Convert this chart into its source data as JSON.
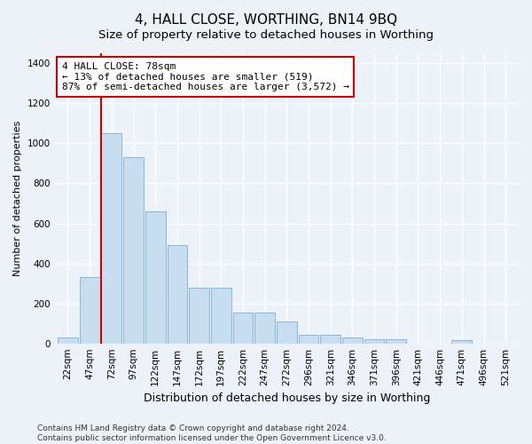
{
  "title": "4, HALL CLOSE, WORTHING, BN14 9BQ",
  "subtitle": "Size of property relative to detached houses in Worthing",
  "xlabel": "Distribution of detached houses by size in Worthing",
  "ylabel": "Number of detached properties",
  "categories": [
    "22sqm",
    "47sqm",
    "72sqm",
    "97sqm",
    "122sqm",
    "147sqm",
    "172sqm",
    "197sqm",
    "222sqm",
    "247sqm",
    "272sqm",
    "296sqm",
    "321sqm",
    "346sqm",
    "371sqm",
    "396sqm",
    "421sqm",
    "446sqm",
    "471sqm",
    "496sqm",
    "521sqm"
  ],
  "values": [
    30,
    330,
    1050,
    930,
    660,
    490,
    280,
    280,
    155,
    155,
    110,
    45,
    45,
    30,
    20,
    20,
    0,
    0,
    15,
    0,
    0
  ],
  "bar_color": "#c9ddf0",
  "bar_edge_color": "#7aadd4",
  "highlight_index": 2,
  "highlight_line_color": "#cc0000",
  "annotation_text": "4 HALL CLOSE: 78sqm\n← 13% of detached houses are smaller (519)\n87% of semi-detached houses are larger (3,572) →",
  "annotation_box_color": "#cc0000",
  "ylim": [
    0,
    1450
  ],
  "yticks": [
    0,
    200,
    400,
    600,
    800,
    1000,
    1200,
    1400
  ],
  "footnote": "Contains HM Land Registry data © Crown copyright and database right 2024.\nContains public sector information licensed under the Open Government Licence v3.0.",
  "bg_color": "#edf2f9",
  "grid_color": "#ffffff",
  "title_fontsize": 11,
  "subtitle_fontsize": 9.5,
  "xlabel_fontsize": 9,
  "ylabel_fontsize": 8,
  "tick_fontsize": 7.5,
  "annot_fontsize": 8,
  "footnote_fontsize": 6.5
}
